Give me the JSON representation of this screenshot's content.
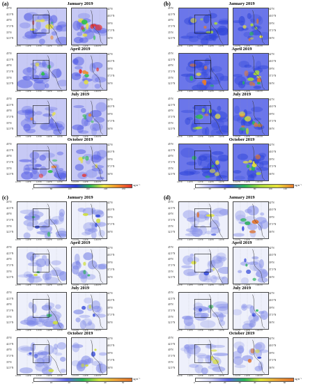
{
  "figure": {
    "panels": [
      {
        "label": "(a)",
        "months": [
          "January 2019",
          "April 2019",
          "July 2019",
          "October 2019"
        ],
        "colorbar": {
          "ticks": [
            "0",
            "60",
            "100",
            "160",
            "220",
            "250"
          ],
          "unit": "ug m⁻³"
        }
      },
      {
        "label": "(b)",
        "months": [
          "January 2019",
          "April 2019",
          "July 2019",
          "October 2019"
        ],
        "colorbar": {
          "ticks": [
            "0",
            "20",
            "40",
            "60",
            "80",
            "100",
            "120"
          ],
          "unit": "ug m⁻³"
        }
      },
      {
        "label": "(c)",
        "months": [
          "January 2019",
          "April 2019",
          "July 2019",
          "October 2019"
        ],
        "colorbar": {
          "ticks": [
            "0",
            "10",
            "20",
            "30",
            "40",
            "50"
          ],
          "unit": "ug m⁻³"
        }
      },
      {
        "label": "(d)",
        "months": [
          "January 2019",
          "April 2019",
          "July 2019",
          "October 2019"
        ],
        "colorbar": {
          "ticks": [
            "0",
            "10",
            "20",
            "30",
            "40",
            "50",
            "60"
          ],
          "unit": "ug m⁻³"
        }
      }
    ],
    "lat_ticks": [
      "45°N",
      "42.5°N",
      "40°N",
      "37.5°N",
      "35°N",
      "32.5°N"
    ],
    "lon_ticks": [
      "105°E",
      "110°E",
      "115°E",
      "120°E",
      "125°E"
    ],
    "zoom_lat_ticks": [
      "42°N",
      "40.5°N",
      "39°N",
      "37.5°N",
      "36°N"
    ],
    "zoom_lon_ticks": [
      "113.5°E",
      "116°E",
      "118.5°E"
    ]
  }
}
